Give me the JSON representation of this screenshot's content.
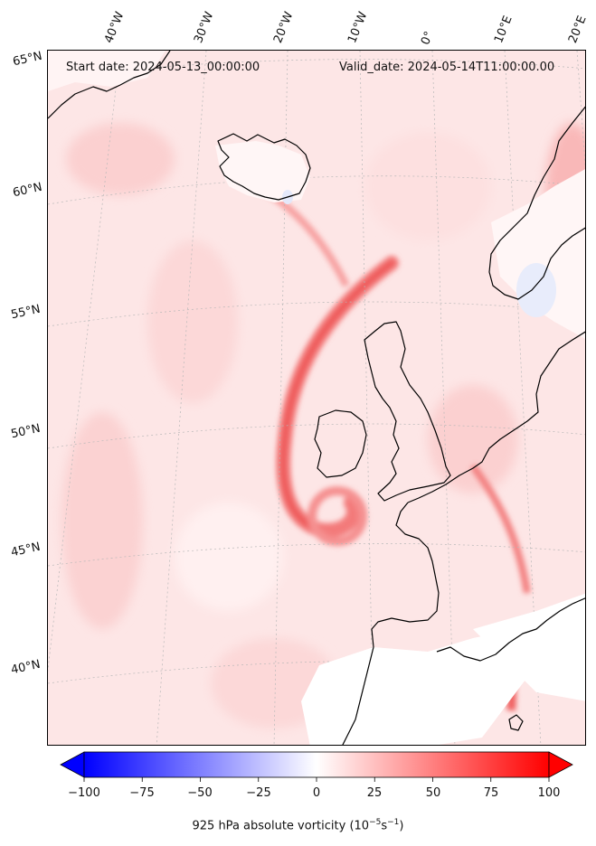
{
  "header": {
    "start_date": "Start date: 2024-05-13_00:00:00",
    "valid_date": "Valid_date: 2024-05-14T11:00:00.00"
  },
  "longitude_labels": [
    "40°W",
    "30°W",
    "20°W",
    "10°W",
    "0°",
    "10°E",
    "20°E"
  ],
  "latitude_labels": [
    "65°N",
    "60°N",
    "55°N",
    "50°N",
    "45°N",
    "40°N"
  ],
  "colorbar": {
    "ticks": [
      "−100",
      "−75",
      "−50",
      "−25",
      "0",
      "25",
      "50",
      "75",
      "100"
    ],
    "tick_values": [
      -100,
      -75,
      -50,
      -25,
      0,
      25,
      50,
      75,
      100
    ],
    "range": [
      -100,
      100
    ],
    "colormap": "bwr",
    "extend": "both",
    "label_text": "925 hPa absolute vorticity (10",
    "label_sup1": "−5",
    "label_mid": "s",
    "label_sup2": "−1",
    "label_end": ")"
  },
  "colors": {
    "negative_max": "#0000ff",
    "zero": "#ffffff",
    "positive_max": "#ff0000",
    "coastline": "#000000",
    "gridline": "#b0b0b0"
  }
}
